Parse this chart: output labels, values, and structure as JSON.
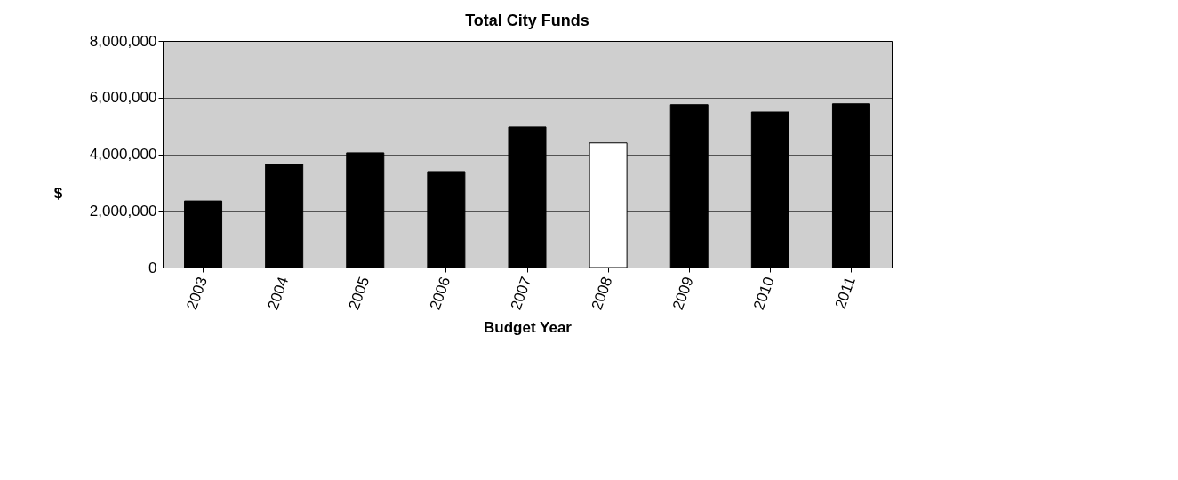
{
  "chart_data": {
    "type": "bar",
    "title": "Total City Funds",
    "xlabel": "Budget Year",
    "ylabel": "$",
    "categories": [
      "2003",
      "2004",
      "2005",
      "2006",
      "2007",
      "2008",
      "2009",
      "2010",
      "2011"
    ],
    "values": [
      2350000,
      3640000,
      4050000,
      3390000,
      4960000,
      4400000,
      5750000,
      5490000,
      5780000
    ],
    "colors": [
      "#000000",
      "#000000",
      "#000000",
      "#000000",
      "#000000",
      "#ffffff",
      "#000000",
      "#000000",
      "#000000"
    ],
    "ylim": [
      0,
      8000000
    ],
    "yticks": [
      0,
      {
        "value": 2000000,
        "label": "2,000,000"
      },
      {
        "value": 4000000,
        "label": "4,000,000"
      },
      {
        "value": 6000000,
        "label": "6,000,000"
      },
      {
        "value": 8000000,
        "label": "8,000,000"
      }
    ],
    "grid": "y",
    "legend": false
  }
}
